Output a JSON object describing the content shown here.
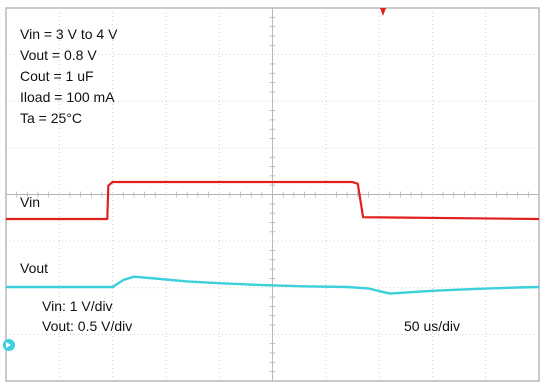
{
  "chart_data": {
    "type": "line",
    "title": "",
    "conditions": [
      "Vin = 3 V to 4 V",
      "Vout = 0.8 V",
      "Cout = 1 uF",
      "Iload = 100 mA",
      "Ta = 25°C"
    ],
    "grid": true,
    "divisions": {
      "x": 10,
      "y": 8
    },
    "time_per_div_us": 50,
    "scale_labels": [
      "Vin: 1 V/div",
      "Vout: 0.5 V/div"
    ],
    "time_label": "50 us/div",
    "x_unit": "us",
    "series": [
      {
        "name": "Vin",
        "color": "#e0201c",
        "x": [
          0,
          95,
          96,
          100,
          325,
          330,
          335,
          500
        ],
        "y": [
          3.0,
          3.0,
          3.9,
          4.0,
          4.0,
          3.95,
          3.05,
          3.0
        ]
      },
      {
        "name": "Vout",
        "color": "#3ccfdc",
        "x": [
          0,
          100,
          110,
          120,
          140,
          170,
          200,
          240,
          280,
          320,
          340,
          360,
          380,
          400,
          440,
          480,
          500
        ],
        "y": [
          0.8,
          0.8,
          0.95,
          1.02,
          0.98,
          0.92,
          0.88,
          0.84,
          0.815,
          0.8,
          0.77,
          0.66,
          0.69,
          0.72,
          0.76,
          0.79,
          0.8
        ]
      }
    ]
  }
}
